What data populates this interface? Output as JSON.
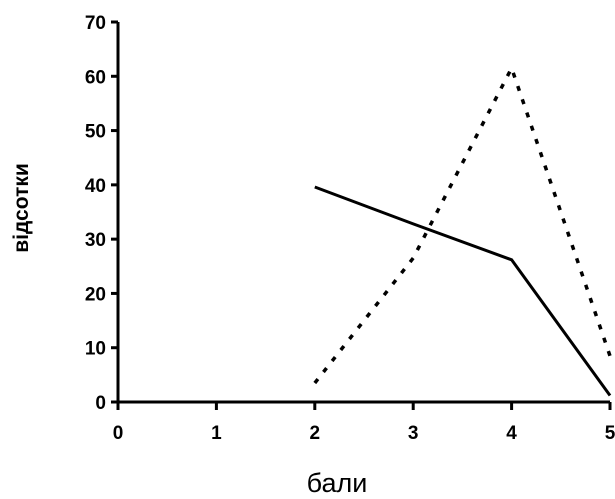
{
  "chart_data": {
    "type": "line",
    "xlabel": "бали",
    "ylabel": "відсотки",
    "xlim": [
      0,
      5
    ],
    "ylim": [
      0,
      70
    ],
    "xticks": [
      "0",
      "1",
      "2",
      "3",
      "4",
      "5"
    ],
    "yticks": [
      "0",
      "10",
      "20",
      "30",
      "40",
      "50",
      "60",
      "70"
    ],
    "grid": false,
    "legend": "none",
    "series": [
      {
        "style": "solid",
        "color": "#000000",
        "x": [
          2,
          3,
          4,
          5
        ],
        "y": [
          39.6,
          32.8,
          26.2,
          1.2
        ]
      },
      {
        "style": "dotted",
        "color": "#000000",
        "x": [
          2,
          3,
          4,
          5
        ],
        "y": [
          3.5,
          26.5,
          61.5,
          8.5
        ]
      }
    ]
  }
}
